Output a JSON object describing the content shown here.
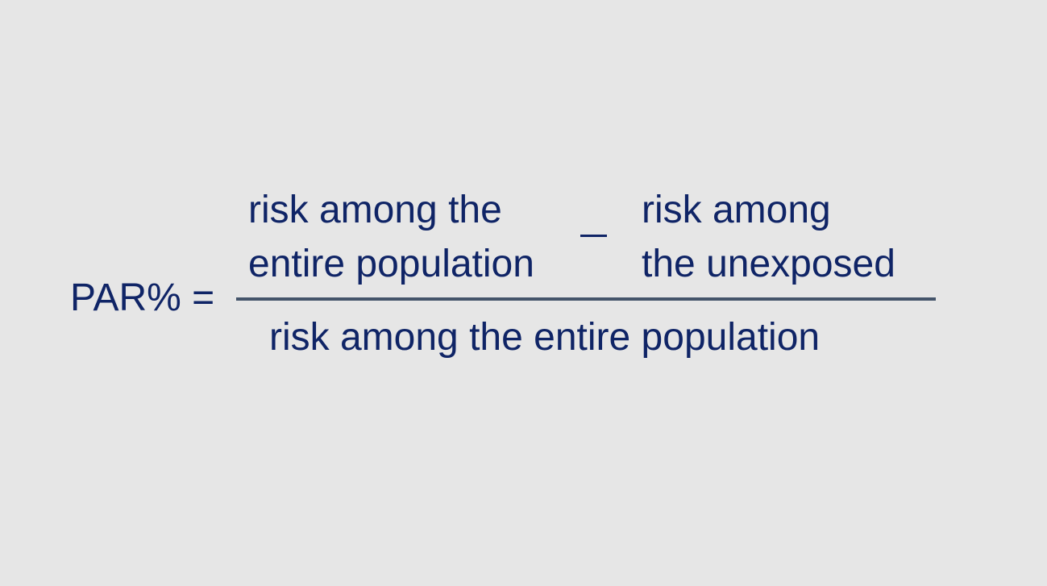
{
  "formula": {
    "lhs": "PAR% =",
    "numerator": {
      "term_a_line1": "risk among the",
      "term_a_line2": "entire population",
      "operator": "_",
      "term_b_line1": "risk among",
      "term_b_line2": "the unexposed"
    },
    "denominator": "risk among the entire population"
  },
  "colors": {
    "background": "#e6e6e6",
    "text": "#0f2466",
    "fraction_bar": "#44546a"
  }
}
